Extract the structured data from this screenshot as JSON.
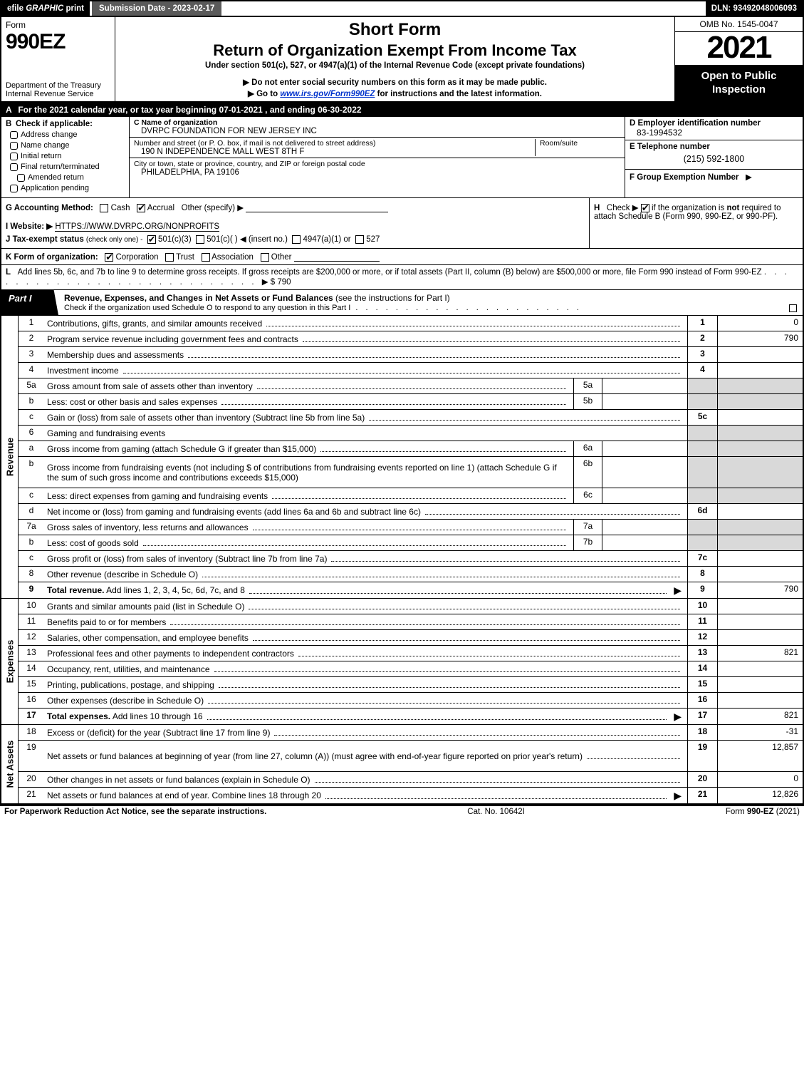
{
  "topbar": {
    "efile_prefix": "efile ",
    "efile_graphic": "GRAPHIC",
    "efile_print": " print",
    "submission_label": "Submission Date - 2023-02-17",
    "dln": "DLN: 93492048006093"
  },
  "title": {
    "form_word": "Form",
    "form_no": "990EZ",
    "dept": "Department of the Treasury\nInternal Revenue Service",
    "short": "Short Form",
    "roei": "Return of Organization Exempt From Income Tax",
    "under": "Under section 501(c), 527, or 4947(a)(1) of the Internal Revenue Code (except private foundations)",
    "donot_pre": "▶ Do not enter social security numbers on this form as it may be made public.",
    "goto_pre": "▶ Go to ",
    "goto_link": "www.irs.gov/Form990EZ",
    "goto_post": " for instructions and the latest information.",
    "omb": "OMB No. 1545-0047",
    "year": "2021",
    "open": "Open to Public Inspection"
  },
  "lineA": {
    "letter": "A",
    "text": "For the 2021 calendar year, or tax year beginning 07-01-2021  , and ending 06-30-2022"
  },
  "B": {
    "letter": "B",
    "label": "Check if applicable:",
    "opts": [
      "Address change",
      "Name change",
      "Initial return",
      "Final return/terminated",
      "Amended return",
      "Application pending"
    ]
  },
  "C": {
    "name_label": "C Name of organization",
    "name_value": "DVRPC FOUNDATION FOR NEW JERSEY INC",
    "addr_label": "Number and street (or P. O. box, if mail is not delivered to street address)",
    "addr_value": "190 N INDEPENDENCE MALL WEST 8TH F",
    "room_label": "Room/suite",
    "city_label": "City or town, state or province, country, and ZIP or foreign postal code",
    "city_value": "PHILADELPHIA, PA   19106"
  },
  "D": {
    "label": "D Employer identification number",
    "value": "83-1994532"
  },
  "E": {
    "label": "E Telephone number",
    "value": "(215) 592-1800"
  },
  "F": {
    "label": "F Group Exemption Number",
    "arrow": "▶"
  },
  "G": {
    "label": "G Accounting Method:",
    "cash": "Cash",
    "accrual": "Accrual",
    "other": "Other (specify) ▶"
  },
  "H": {
    "label": "H",
    "text_pre": "Check ▶ ",
    "text_post": " if the organization is ",
    "not": "not",
    "text2": " required to attach Schedule B (Form 990, 990-EZ, or 990-PF)."
  },
  "I": {
    "label": "I Website: ▶",
    "value": "HTTPS://WWW.DVRPC.ORG/NONPROFITS"
  },
  "J": {
    "label": "J Tax-exempt status",
    "sub": "(check only one) -",
    "o501c3": "501(c)(3)",
    "o501c": "501(c)(   ) ◀ (insert no.)",
    "o4947": "4947(a)(1) or",
    "o527": "527"
  },
  "K": {
    "label": "K Form of organization:",
    "corp": "Corporation",
    "trust": "Trust",
    "assoc": "Association",
    "other": "Other"
  },
  "L": {
    "label": "L",
    "text": "Add lines 5b, 6c, and 7b to line 9 to determine gross receipts. If gross receipts are $200,000 or more, or if total assets (Part II, column (B) below) are $500,000 or more, file Form 990 instead of Form 990-EZ",
    "amount": "▶ $ 790"
  },
  "partI": {
    "tab": "Part I",
    "title": "Revenue, Expenses, and Changes in Net Assets or Fund Balances",
    "title_post": " (see the instructions for Part I)",
    "checkline": "Check if the organization used Schedule O to respond to any question in this Part I"
  },
  "revenue": {
    "side": "Revenue",
    "rows": [
      {
        "num": "1",
        "desc": "Contributions, gifts, grants, and similar amounts received",
        "rnum": "1",
        "rval": "0"
      },
      {
        "num": "2",
        "desc": "Program service revenue including government fees and contracts",
        "rnum": "2",
        "rval": "790"
      },
      {
        "num": "3",
        "desc": "Membership dues and assessments",
        "rnum": "3",
        "rval": ""
      },
      {
        "num": "4",
        "desc": "Investment income",
        "rnum": "4",
        "rval": ""
      },
      {
        "num": "5a",
        "desc": "Gross amount from sale of assets other than inventory",
        "sub": "5a",
        "shade": true
      },
      {
        "num": "b",
        "desc": "Less: cost or other basis and sales expenses",
        "sub": "5b",
        "shade": true
      },
      {
        "num": "c",
        "desc": "Gain or (loss) from sale of assets other than inventory (Subtract line 5b from line 5a)",
        "rnum": "5c",
        "rval": ""
      },
      {
        "num": "6",
        "desc": "Gaming and fundraising events",
        "gameshdr": true
      },
      {
        "num": "a",
        "desc": "Gross income from gaming (attach Schedule G if greater than $15,000)",
        "sub": "6a",
        "shade": true
      },
      {
        "num": "b",
        "desc": "Gross income from fundraising events (not including $                    of contributions from fundraising events reported on line 1) (attach Schedule G if the sum of such gross income and contributions exceeds $15,000)",
        "sub": "6b",
        "shade": true,
        "tall": true
      },
      {
        "num": "c",
        "desc": "Less: direct expenses from gaming and fundraising events",
        "sub": "6c",
        "shade": true
      },
      {
        "num": "d",
        "desc": "Net income or (loss) from gaming and fundraising events (add lines 6a and 6b and subtract line 6c)",
        "rnum": "6d",
        "rval": ""
      },
      {
        "num": "7a",
        "desc": "Gross sales of inventory, less returns and allowances",
        "sub": "7a",
        "shade": true
      },
      {
        "num": "b",
        "desc": "Less: cost of goods sold",
        "sub": "7b",
        "shade": true
      },
      {
        "num": "c",
        "desc": "Gross profit or (loss) from sales of inventory (Subtract line 7b from line 7a)",
        "rnum": "7c",
        "rval": ""
      },
      {
        "num": "8",
        "desc": "Other revenue (describe in Schedule O)",
        "rnum": "8",
        "rval": ""
      },
      {
        "num": "9",
        "desc": "Total revenue. Add lines 1, 2, 3, 4, 5c, 6d, 7c, and 8",
        "rnum": "9",
        "rval": "790",
        "bold": true,
        "arrow": true
      }
    ]
  },
  "expenses": {
    "side": "Expenses",
    "rows": [
      {
        "num": "10",
        "desc": "Grants and similar amounts paid (list in Schedule O)",
        "rnum": "10",
        "rval": ""
      },
      {
        "num": "11",
        "desc": "Benefits paid to or for members",
        "rnum": "11",
        "rval": ""
      },
      {
        "num": "12",
        "desc": "Salaries, other compensation, and employee benefits",
        "rnum": "12",
        "rval": ""
      },
      {
        "num": "13",
        "desc": "Professional fees and other payments to independent contractors",
        "rnum": "13",
        "rval": "821"
      },
      {
        "num": "14",
        "desc": "Occupancy, rent, utilities, and maintenance",
        "rnum": "14",
        "rval": ""
      },
      {
        "num": "15",
        "desc": "Printing, publications, postage, and shipping",
        "rnum": "15",
        "rval": ""
      },
      {
        "num": "16",
        "desc": "Other expenses (describe in Schedule O)",
        "rnum": "16",
        "rval": ""
      },
      {
        "num": "17",
        "desc": "Total expenses. Add lines 10 through 16",
        "rnum": "17",
        "rval": "821",
        "bold": true,
        "arrow": true
      }
    ]
  },
  "netassets": {
    "side": "Net Assets",
    "rows": [
      {
        "num": "18",
        "desc": "Excess or (deficit) for the year (Subtract line 17 from line 9)",
        "rnum": "18",
        "rval": "-31"
      },
      {
        "num": "19",
        "desc": "Net assets or fund balances at beginning of year (from line 27, column (A)) (must agree with end-of-year figure reported on prior year's return)",
        "rnum": "19",
        "rval": "12,857",
        "tall": true,
        "shadeTop": true
      },
      {
        "num": "20",
        "desc": "Other changes in net assets or fund balances (explain in Schedule O)",
        "rnum": "20",
        "rval": "0"
      },
      {
        "num": "21",
        "desc": "Net assets or fund balances at end of year. Combine lines 18 through 20",
        "rnum": "21",
        "rval": "12,826",
        "arrow": true
      }
    ]
  },
  "footer": {
    "left": "For Paperwork Reduction Act Notice, see the separate instructions.",
    "mid": "Cat. No. 10642I",
    "right_pre": "Form ",
    "right_form": "990-EZ",
    "right_post": " (2021)"
  },
  "colors": {
    "black": "#000000",
    "white": "#ffffff",
    "gray_bg": "#d9d9d9",
    "topbar_gray": "#5a5a5a",
    "link": "#0033cc"
  }
}
